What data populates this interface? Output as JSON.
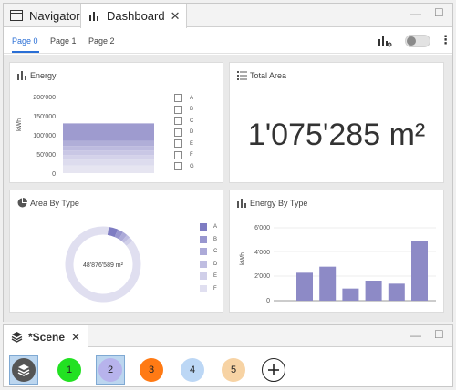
{
  "tabs": {
    "navigator": "Navigator",
    "dashboard": "Dashboard"
  },
  "pages": [
    "Page 0",
    "Page 1",
    "Page 2"
  ],
  "cards": {
    "energy": {
      "title": "Energy",
      "ylabel": "kWh",
      "yticks": [
        "200'000",
        "150'000",
        "100'000",
        "50'000",
        "0"
      ],
      "legend": [
        "A",
        "B",
        "C",
        "D",
        "E",
        "F",
        "G"
      ],
      "stack_values": [
        20000,
        15000,
        12000,
        12000,
        12000,
        13000,
        46000
      ],
      "stack_colors": [
        "#e6e5f1",
        "#dddcee",
        "#d4d2ea",
        "#c9c7e5",
        "#bdbbdf",
        "#b0aed8",
        "#9e9bcf"
      ]
    },
    "total_area": {
      "title": "Total Area",
      "value": "1'075'285 m²"
    },
    "area_by_type": {
      "title": "Area By Type",
      "center": "48'876'589 m²",
      "legend": [
        "A",
        "B",
        "C",
        "D",
        "E",
        "F"
      ],
      "colors": [
        "#7e7cc2",
        "#9896cf",
        "#acaad8",
        "#bfbde1",
        "#d0cfe9",
        "#e0dff0"
      ],
      "values": [
        4,
        2.5,
        2,
        1.5,
        2,
        88
      ]
    },
    "energy_by_type": {
      "title": "Energy By Type",
      "ylabel": "kWh",
      "yticks": [
        "6'000",
        "4'000",
        "2'000",
        "0"
      ],
      "ylim": [
        0,
        6000
      ],
      "values": [
        2300,
        2800,
        1000,
        1650,
        1400,
        4900
      ],
      "bar_color": "#8d8ac6"
    }
  },
  "scene": {
    "tab": "*Scene",
    "buttons": [
      {
        "label": "1",
        "color": "#22e122"
      },
      {
        "label": "2",
        "color": "#b7b3ec"
      },
      {
        "label": "3",
        "color": "#ff7a14"
      },
      {
        "label": "4",
        "color": "#bcd7f5"
      },
      {
        "label": "5",
        "color": "#f7d3a4"
      }
    ]
  }
}
